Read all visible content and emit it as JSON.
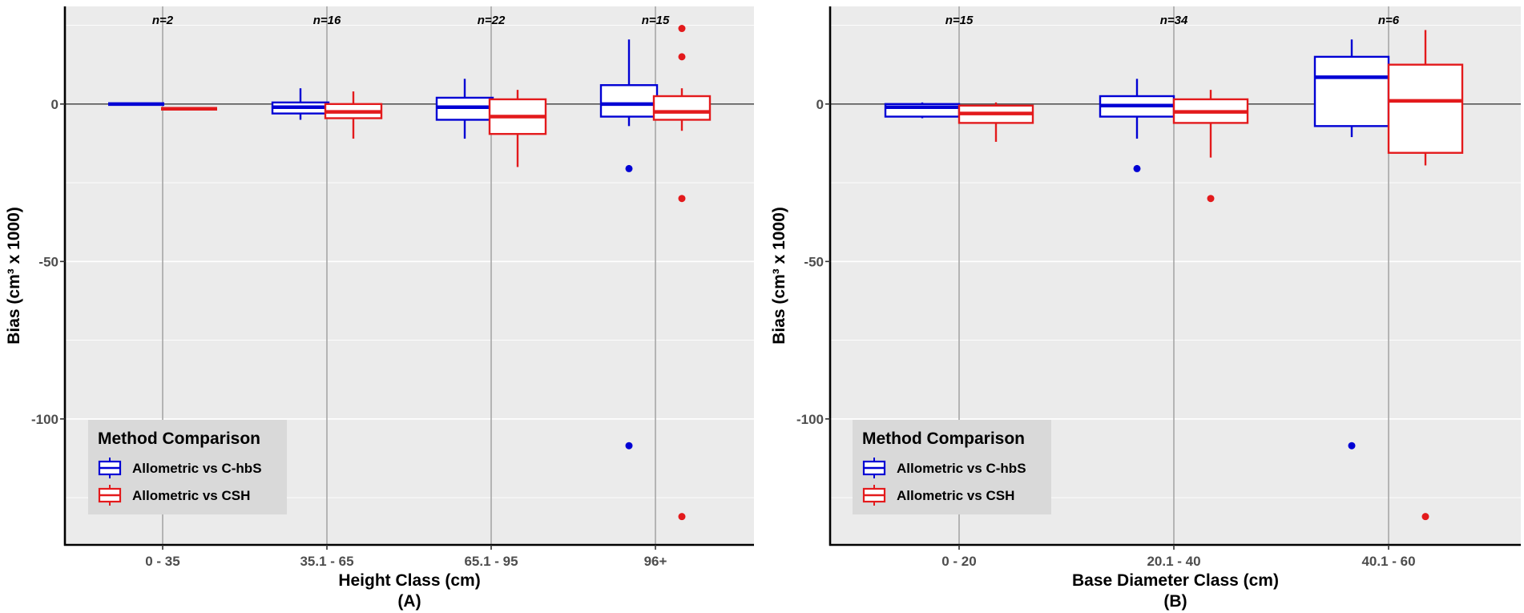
{
  "chart_data": [
    {
      "type": "boxplot",
      "panel_label": "(A)",
      "xlabel": "Height Class (cm)",
      "ylabel": "Bias (cm³ x 1000)",
      "ylim": [
        -140,
        31
      ],
      "yticks": [
        0,
        -50,
        -100
      ],
      "ytick_labels": [
        "0",
        "-50",
        "-100"
      ],
      "categories": [
        "0 - 35",
        "35.1 - 65",
        "65.1 - 95",
        "96+"
      ],
      "n_labels": [
        "n=2",
        "n=16",
        "n=22",
        "n=15"
      ],
      "series": [
        {
          "name": "Allometric vs C-hbS",
          "color": "#0000d4",
          "boxes": [
            {
              "whislo": 0,
              "q1": 0,
              "med": 0,
              "q3": 0,
              "whishi": 0,
              "outliers": []
            },
            {
              "whislo": -5,
              "q1": -3,
              "med": -1,
              "q3": 0.5,
              "whishi": 5,
              "outliers": []
            },
            {
              "whislo": -11,
              "q1": -5,
              "med": -1,
              "q3": 2,
              "whishi": 8,
              "outliers": []
            },
            {
              "whislo": -7,
              "q1": -4,
              "med": 0,
              "q3": 6,
              "whishi": 20.5,
              "outliers": [
                -20.5,
                -108.5
              ]
            }
          ]
        },
        {
          "name": "Allometric vs CSH",
          "color": "#e31a1c",
          "boxes": [
            {
              "whislo": -1.5,
              "q1": -1.5,
              "med": -1.5,
              "q3": -1.5,
              "whishi": -1.5,
              "outliers": []
            },
            {
              "whislo": -11,
              "q1": -4.5,
              "med": -2.5,
              "q3": 0,
              "whishi": 4,
              "outliers": []
            },
            {
              "whislo": -20,
              "q1": -9.5,
              "med": -4,
              "q3": 1.5,
              "whishi": 4.5,
              "outliers": []
            },
            {
              "whislo": -8.5,
              "q1": -5,
              "med": -2.5,
              "q3": 2.5,
              "whishi": 5,
              "outliers": [
                24,
                15,
                -30,
                -131
              ]
            }
          ]
        }
      ],
      "legend": {
        "title": "Method Comparison",
        "position": "bottom-left",
        "entries": [
          "Allometric vs C-hbS",
          "Allometric vs CSH"
        ]
      }
    },
    {
      "type": "boxplot",
      "panel_label": "(B)",
      "xlabel": "Base Diameter Class (cm)",
      "ylabel": "Bias (cm³ x 1000)",
      "ylim": [
        -140,
        31
      ],
      "yticks": [
        0,
        -50,
        -100
      ],
      "ytick_labels": [
        "0",
        "-50",
        "-100"
      ],
      "categories": [
        "0 - 20",
        "20.1 - 40",
        "40.1 - 60"
      ],
      "n_labels": [
        "n=15",
        "n=34",
        "n=6"
      ],
      "series": [
        {
          "name": "Allometric vs C-hbS",
          "color": "#0000d4",
          "boxes": [
            {
              "whislo": -4.5,
              "q1": -4,
              "med": -1,
              "q3": 0,
              "whishi": 0.5,
              "outliers": []
            },
            {
              "whislo": -11,
              "q1": -4,
              "med": -0.5,
              "q3": 2.5,
              "whishi": 8,
              "outliers": [
                -20.5
              ]
            },
            {
              "whislo": -10.5,
              "q1": -7,
              "med": 8.5,
              "q3": 15,
              "whishi": 20.5,
              "outliers": [
                -108.5
              ]
            }
          ]
        },
        {
          "name": "Allometric vs CSH",
          "color": "#e31a1c",
          "boxes": [
            {
              "whislo": -12,
              "q1": -6,
              "med": -3,
              "q3": -0.5,
              "whishi": 0.5,
              "outliers": []
            },
            {
              "whislo": -17,
              "q1": -6,
              "med": -2.5,
              "q3": 1.5,
              "whishi": 4.5,
              "outliers": [
                -30
              ]
            },
            {
              "whislo": -19.5,
              "q1": -15.5,
              "med": 1,
              "q3": 12.5,
              "whishi": 23.5,
              "outliers": [
                -131
              ]
            }
          ]
        }
      ],
      "legend": {
        "title": "Method Comparison",
        "position": "bottom-left",
        "entries": [
          "Allometric vs C-hbS",
          "Allometric vs CSH"
        ]
      }
    }
  ]
}
